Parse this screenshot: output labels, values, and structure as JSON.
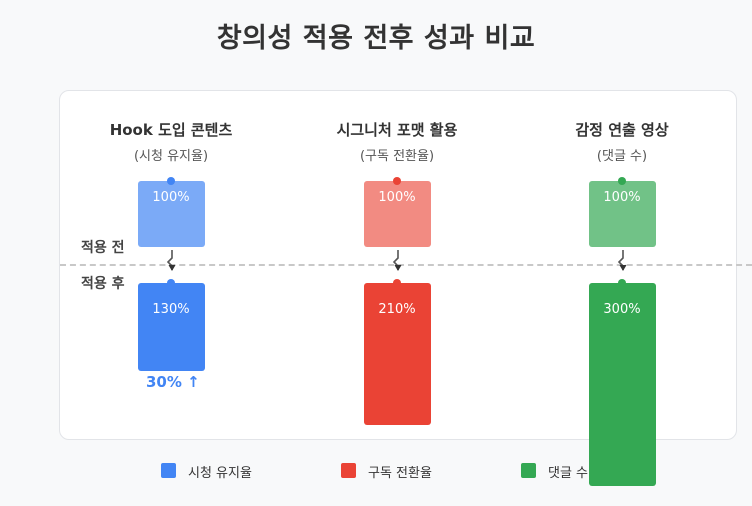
{
  "title": "창의성 적용 전후 성과 비교",
  "labels": {
    "before": "적용 전",
    "after": "적용 후"
  },
  "chart_data": {
    "type": "bar",
    "title": "창의성 적용 전후 성과 비교",
    "categories": [
      "Hook 도입 콘텐츠",
      "시그니처 포맷 활용",
      "감정 연출 영상"
    ],
    "subtitles": [
      "(시청 유지율)",
      "(구독 전환율)",
      "(댓글 수)"
    ],
    "series": [
      {
        "name": "적용 전",
        "values": [
          100,
          100,
          100
        ]
      },
      {
        "name": "적용 후",
        "values": [
          130,
          210,
          300
        ]
      }
    ],
    "value_unit": "%",
    "value_labels": {
      "before": [
        "100%",
        "100%",
        "100%"
      ],
      "after": [
        "130%",
        "210%",
        "300%"
      ]
    },
    "annotation": "30% ↑",
    "colors": [
      "#4285f4",
      "#ea4335",
      "#34a853"
    ],
    "before_colors": [
      "#7baaf7",
      "#f28b82",
      "#71c287"
    ],
    "legend": [
      "시청 유지율",
      "구독 전환율",
      "댓글 수"
    ],
    "legend_position": "bottom"
  }
}
